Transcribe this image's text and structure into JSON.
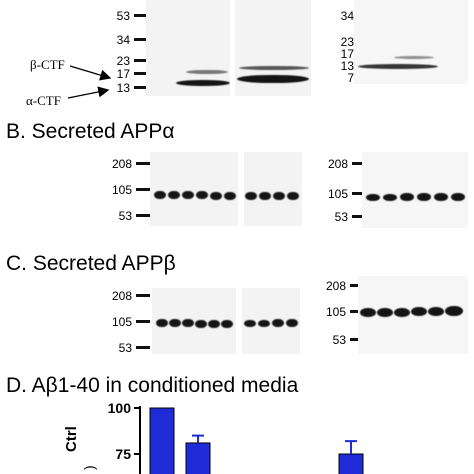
{
  "panel_a": {
    "mw_left": [
      "53",
      "34",
      "23",
      "17",
      "13"
    ],
    "mw_right": [
      "34",
      "23",
      "17",
      "13",
      "7"
    ],
    "beta_ctf_label": "β-CTF",
    "alpha_ctf_label": "α-CTF"
  },
  "panel_b": {
    "title": "B. Secreted APPα",
    "mw_left": [
      "208",
      "105",
      "53"
    ],
    "mw_right": [
      "208",
      "105",
      "53"
    ]
  },
  "panel_c": {
    "title": "C. Secreted APPβ",
    "mw_left": [
      "208",
      "105",
      "53"
    ],
    "mw_right": [
      "208",
      "105",
      "53"
    ]
  },
  "panel_d": {
    "title": "D. Aβ1-40 in conditioned media",
    "ylabel_partial": "Ctrl",
    "ylabel_partial2": ")",
    "yticks": [
      "100",
      "75"
    ],
    "bar_color": "#1f2bd6",
    "chart_data": {
      "type": "bar",
      "values": [
        100,
        81,
        75
      ],
      "errors": [
        0,
        4,
        7
      ],
      "yticks": [
        100,
        75
      ]
    }
  }
}
